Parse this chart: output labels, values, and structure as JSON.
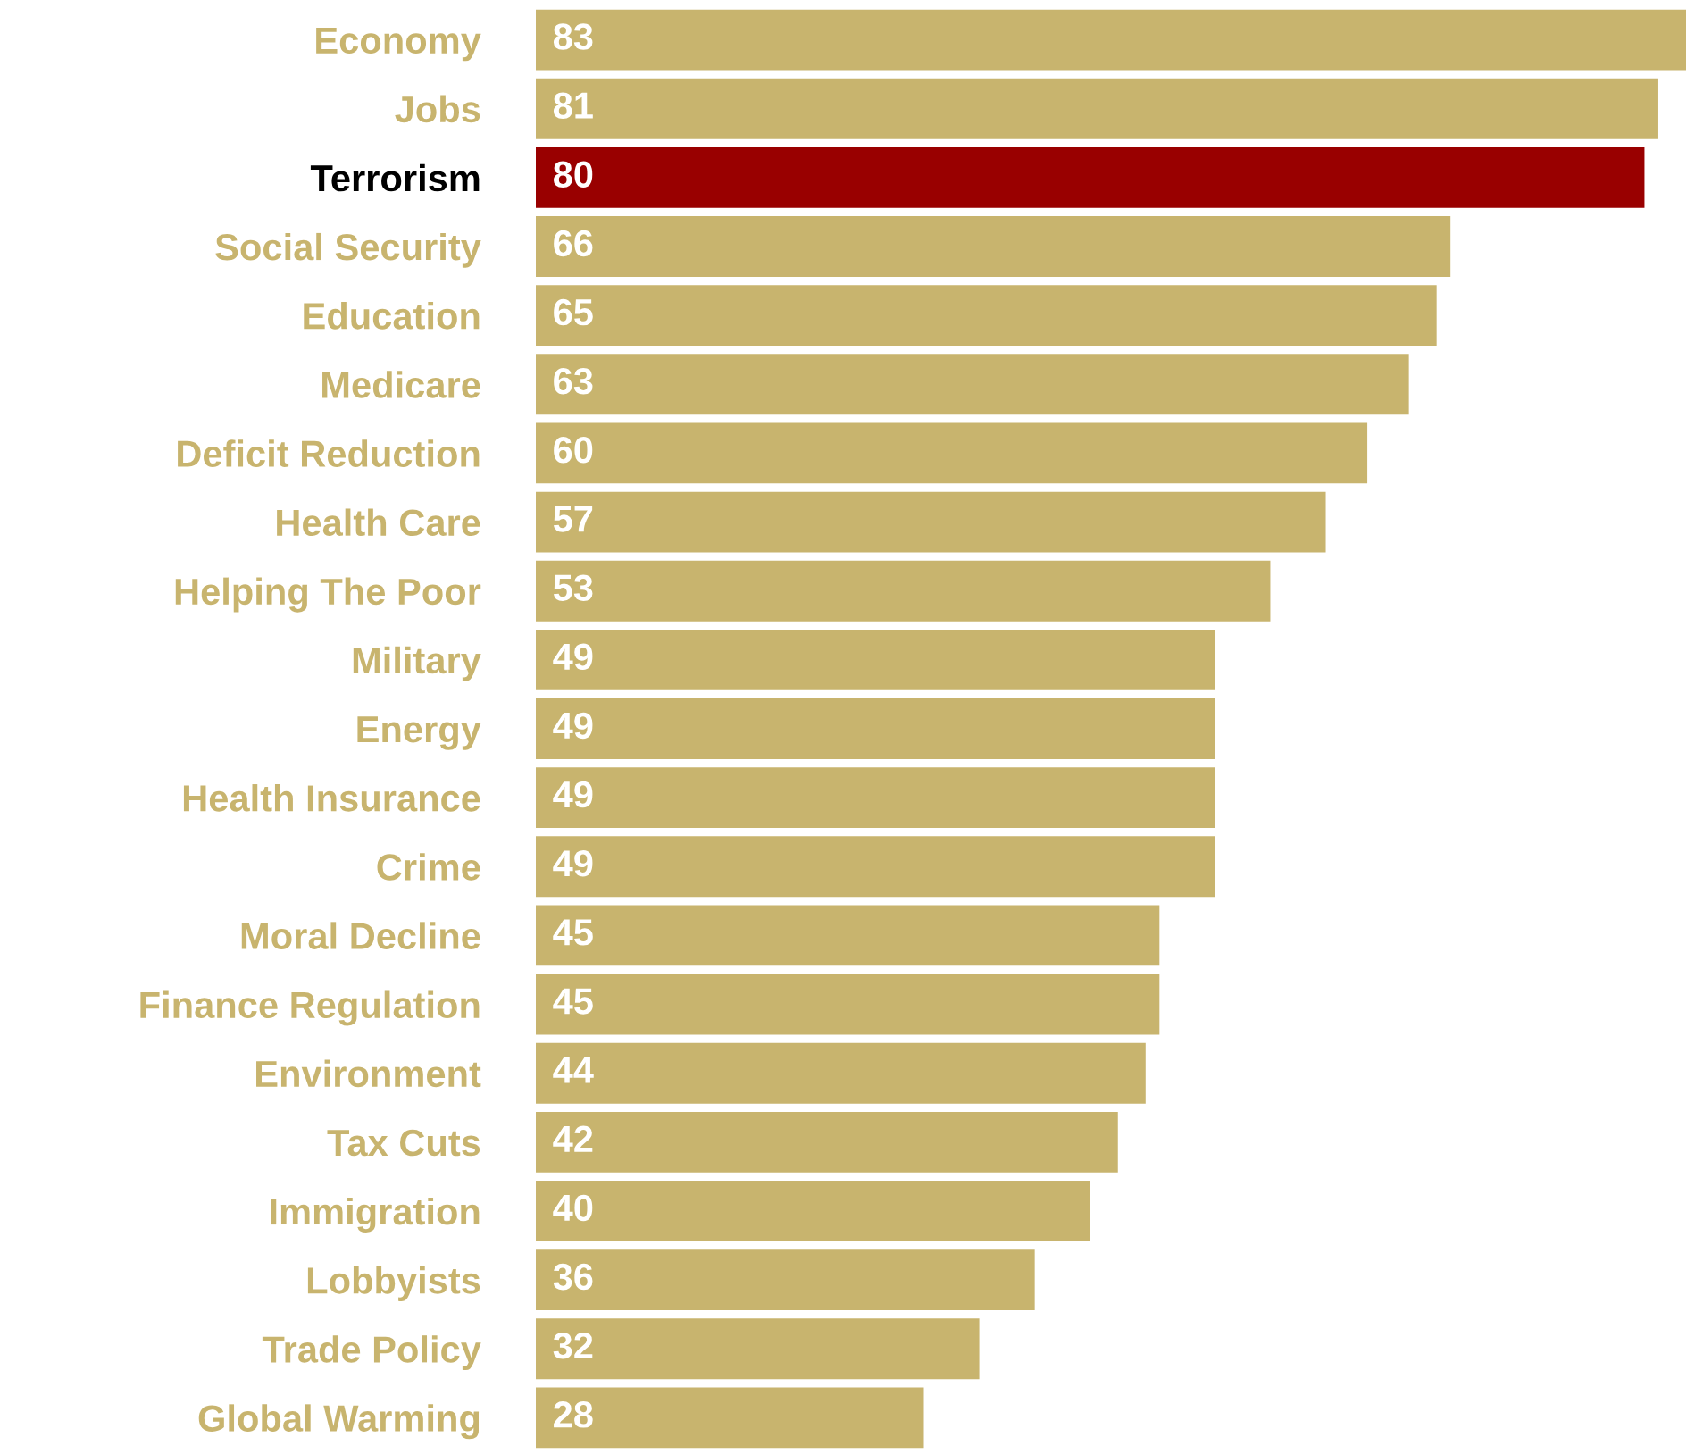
{
  "chart_data": {
    "type": "bar",
    "orientation": "horizontal",
    "data_labels": true,
    "categories": [
      "Economy",
      "Jobs",
      "Terrorism",
      "Social Security",
      "Education",
      "Medicare",
      "Deficit Reduction",
      "Health Care",
      "Helping The Poor",
      "Military",
      "Energy",
      "Health Insurance",
      "Crime",
      "Moral Decline",
      "Finance Regulation",
      "Environment",
      "Tax Cuts",
      "Immigration",
      "Lobbyists",
      "Trade Policy",
      "Global Warming"
    ],
    "values": [
      83,
      81,
      80,
      66,
      65,
      63,
      60,
      57,
      53,
      49,
      49,
      49,
      49,
      45,
      45,
      44,
      42,
      40,
      36,
      32,
      28
    ],
    "colors": [
      "#c8b46e",
      "#c8b46e",
      "#990000",
      "#c8b46e",
      "#c8b46e",
      "#c8b46e",
      "#c8b46e",
      "#c8b46e",
      "#c8b46e",
      "#c8b46e",
      "#c8b46e",
      "#c8b46e",
      "#c8b46e",
      "#c8b46e",
      "#c8b46e",
      "#c8b46e",
      "#c8b46e",
      "#c8b46e",
      "#c8b46e",
      "#c8b46e",
      "#c8b46e"
    ]
  }
}
